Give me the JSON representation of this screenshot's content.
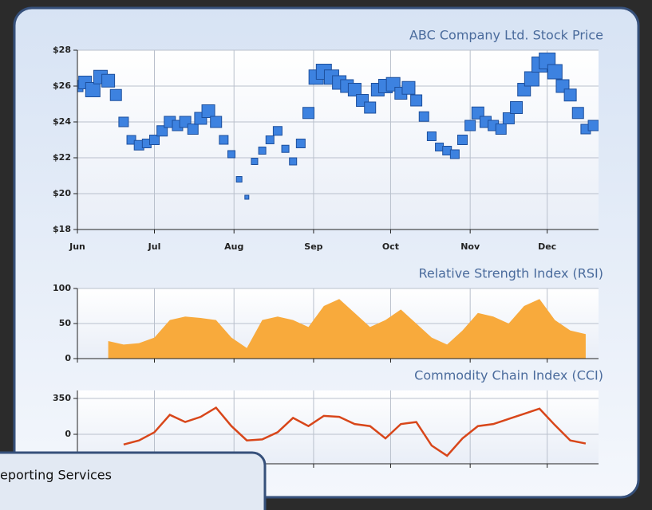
{
  "chart_data": [
    {
      "type": "bubble",
      "title": "ABC Company Ltd. Stock Price",
      "color": "#3d82e0",
      "edge": "#1d4f9c",
      "xlim": [
        0,
        203
      ],
      "xticks": [
        {
          "value": 0,
          "label": "Jun"
        },
        {
          "value": 30,
          "label": "Jul"
        },
        {
          "value": 61,
          "label": "Aug"
        },
        {
          "value": 92,
          "label": "Sep"
        },
        {
          "value": 122,
          "label": "Oct"
        },
        {
          "value": 153,
          "label": "Nov"
        },
        {
          "value": 183,
          "label": "Dec"
        }
      ],
      "ylim": [
        18,
        28
      ],
      "yticks": [
        {
          "value": 18,
          "label": "$18"
        },
        {
          "value": 20,
          "label": "$20"
        },
        {
          "value": 22,
          "label": "$22"
        },
        {
          "value": 24,
          "label": "$24"
        },
        {
          "value": 26,
          "label": "$26"
        },
        {
          "value": 28,
          "label": "$28"
        }
      ],
      "grid": true,
      "x": [
        0,
        3,
        6,
        9,
        12,
        15,
        18,
        21,
        24,
        27,
        30,
        33,
        36,
        39,
        42,
        45,
        48,
        51,
        54,
        57,
        60,
        63,
        66,
        69,
        72,
        75,
        78,
        81,
        84,
        87,
        90,
        93,
        96,
        99,
        102,
        105,
        108,
        111,
        114,
        117,
        120,
        123,
        126,
        129,
        132,
        135,
        138,
        141,
        144,
        147,
        150,
        153,
        156,
        159,
        162,
        165,
        168,
        171,
        174,
        177,
        180,
        183,
        186,
        189,
        192,
        195,
        198,
        201
      ],
      "values": [
        26,
        26.2,
        25.8,
        26.5,
        26.3,
        25.5,
        24,
        23,
        22.7,
        22.8,
        23,
        23.5,
        24,
        23.8,
        24,
        23.6,
        24.2,
        24.6,
        24,
        23,
        22.2,
        20.8,
        19.8,
        21.8,
        22.4,
        23,
        23.5,
        22.5,
        21.8,
        22.8,
        24.5,
        26.5,
        26.8,
        26.5,
        26.2,
        26,
        25.8,
        25.2,
        24.8,
        25.8,
        26,
        26.1,
        25.6,
        25.9,
        25.2,
        24.3,
        23.2,
        22.6,
        22.4,
        22.2,
        23,
        23.8,
        24.5,
        24,
        23.8,
        23.6,
        24.2,
        24.8,
        25.8,
        26.4,
        27.2,
        27.4,
        26.8,
        26,
        25.5,
        24.5,
        23.6,
        23.8
      ],
      "sizes": [
        14,
        16,
        18,
        17,
        16,
        14,
        12,
        11,
        12,
        11,
        12,
        13,
        14,
        13,
        14,
        13,
        15,
        16,
        14,
        11,
        9,
        7,
        5,
        8,
        9,
        10,
        11,
        9,
        9,
        11,
        14,
        18,
        19,
        18,
        17,
        16,
        16,
        15,
        14,
        16,
        17,
        17,
        15,
        16,
        14,
        12,
        11,
        10,
        11,
        11,
        12,
        13,
        15,
        14,
        13,
        13,
        14,
        15,
        16,
        18,
        19,
        20,
        18,
        16,
        15,
        14,
        12,
        13
      ]
    },
    {
      "type": "area",
      "title": "Relative Strength Index (RSI)",
      "color": "#f8aa3c",
      "xlim": [
        0,
        203
      ],
      "ylim": [
        0,
        100
      ],
      "yticks": [
        0,
        50,
        100
      ],
      "grid": true,
      "x": [
        12,
        18,
        24,
        30,
        36,
        42,
        48,
        54,
        60,
        66,
        72,
        78,
        84,
        90,
        96,
        102,
        108,
        114,
        120,
        126,
        132,
        138,
        144,
        150,
        156,
        162,
        168,
        174,
        180,
        186,
        192,
        198
      ],
      "values": [
        25,
        20,
        22,
        30,
        55,
        60,
        58,
        55,
        30,
        15,
        55,
        60,
        55,
        45,
        75,
        85,
        65,
        45,
        55,
        70,
        50,
        30,
        20,
        40,
        65,
        60,
        50,
        75,
        85,
        55,
        40,
        35
      ]
    },
    {
      "type": "line",
      "title": "Commodity Chain Index (CCI)",
      "color": "#d8461a",
      "xlim": [
        0,
        203
      ],
      "ylim": [
        -288,
        428
      ],
      "yticks": [
        0,
        350
      ],
      "grid": true,
      "x": [
        18,
        24,
        30,
        36,
        42,
        48,
        54,
        60,
        66,
        72,
        78,
        84,
        90,
        96,
        102,
        108,
        114,
        120,
        126,
        132,
        138,
        144,
        150,
        156,
        162,
        168,
        174,
        180,
        186,
        192,
        198
      ],
      "values": [
        -100,
        -60,
        20,
        190,
        120,
        170,
        260,
        80,
        -60,
        -50,
        20,
        160,
        80,
        180,
        170,
        100,
        80,
        -40,
        100,
        120,
        -110,
        -210,
        -40,
        80,
        100,
        150,
        200,
        250,
        90,
        -60,
        -90
      ]
    }
  ],
  "window": {
    "title": "eporting Services"
  }
}
